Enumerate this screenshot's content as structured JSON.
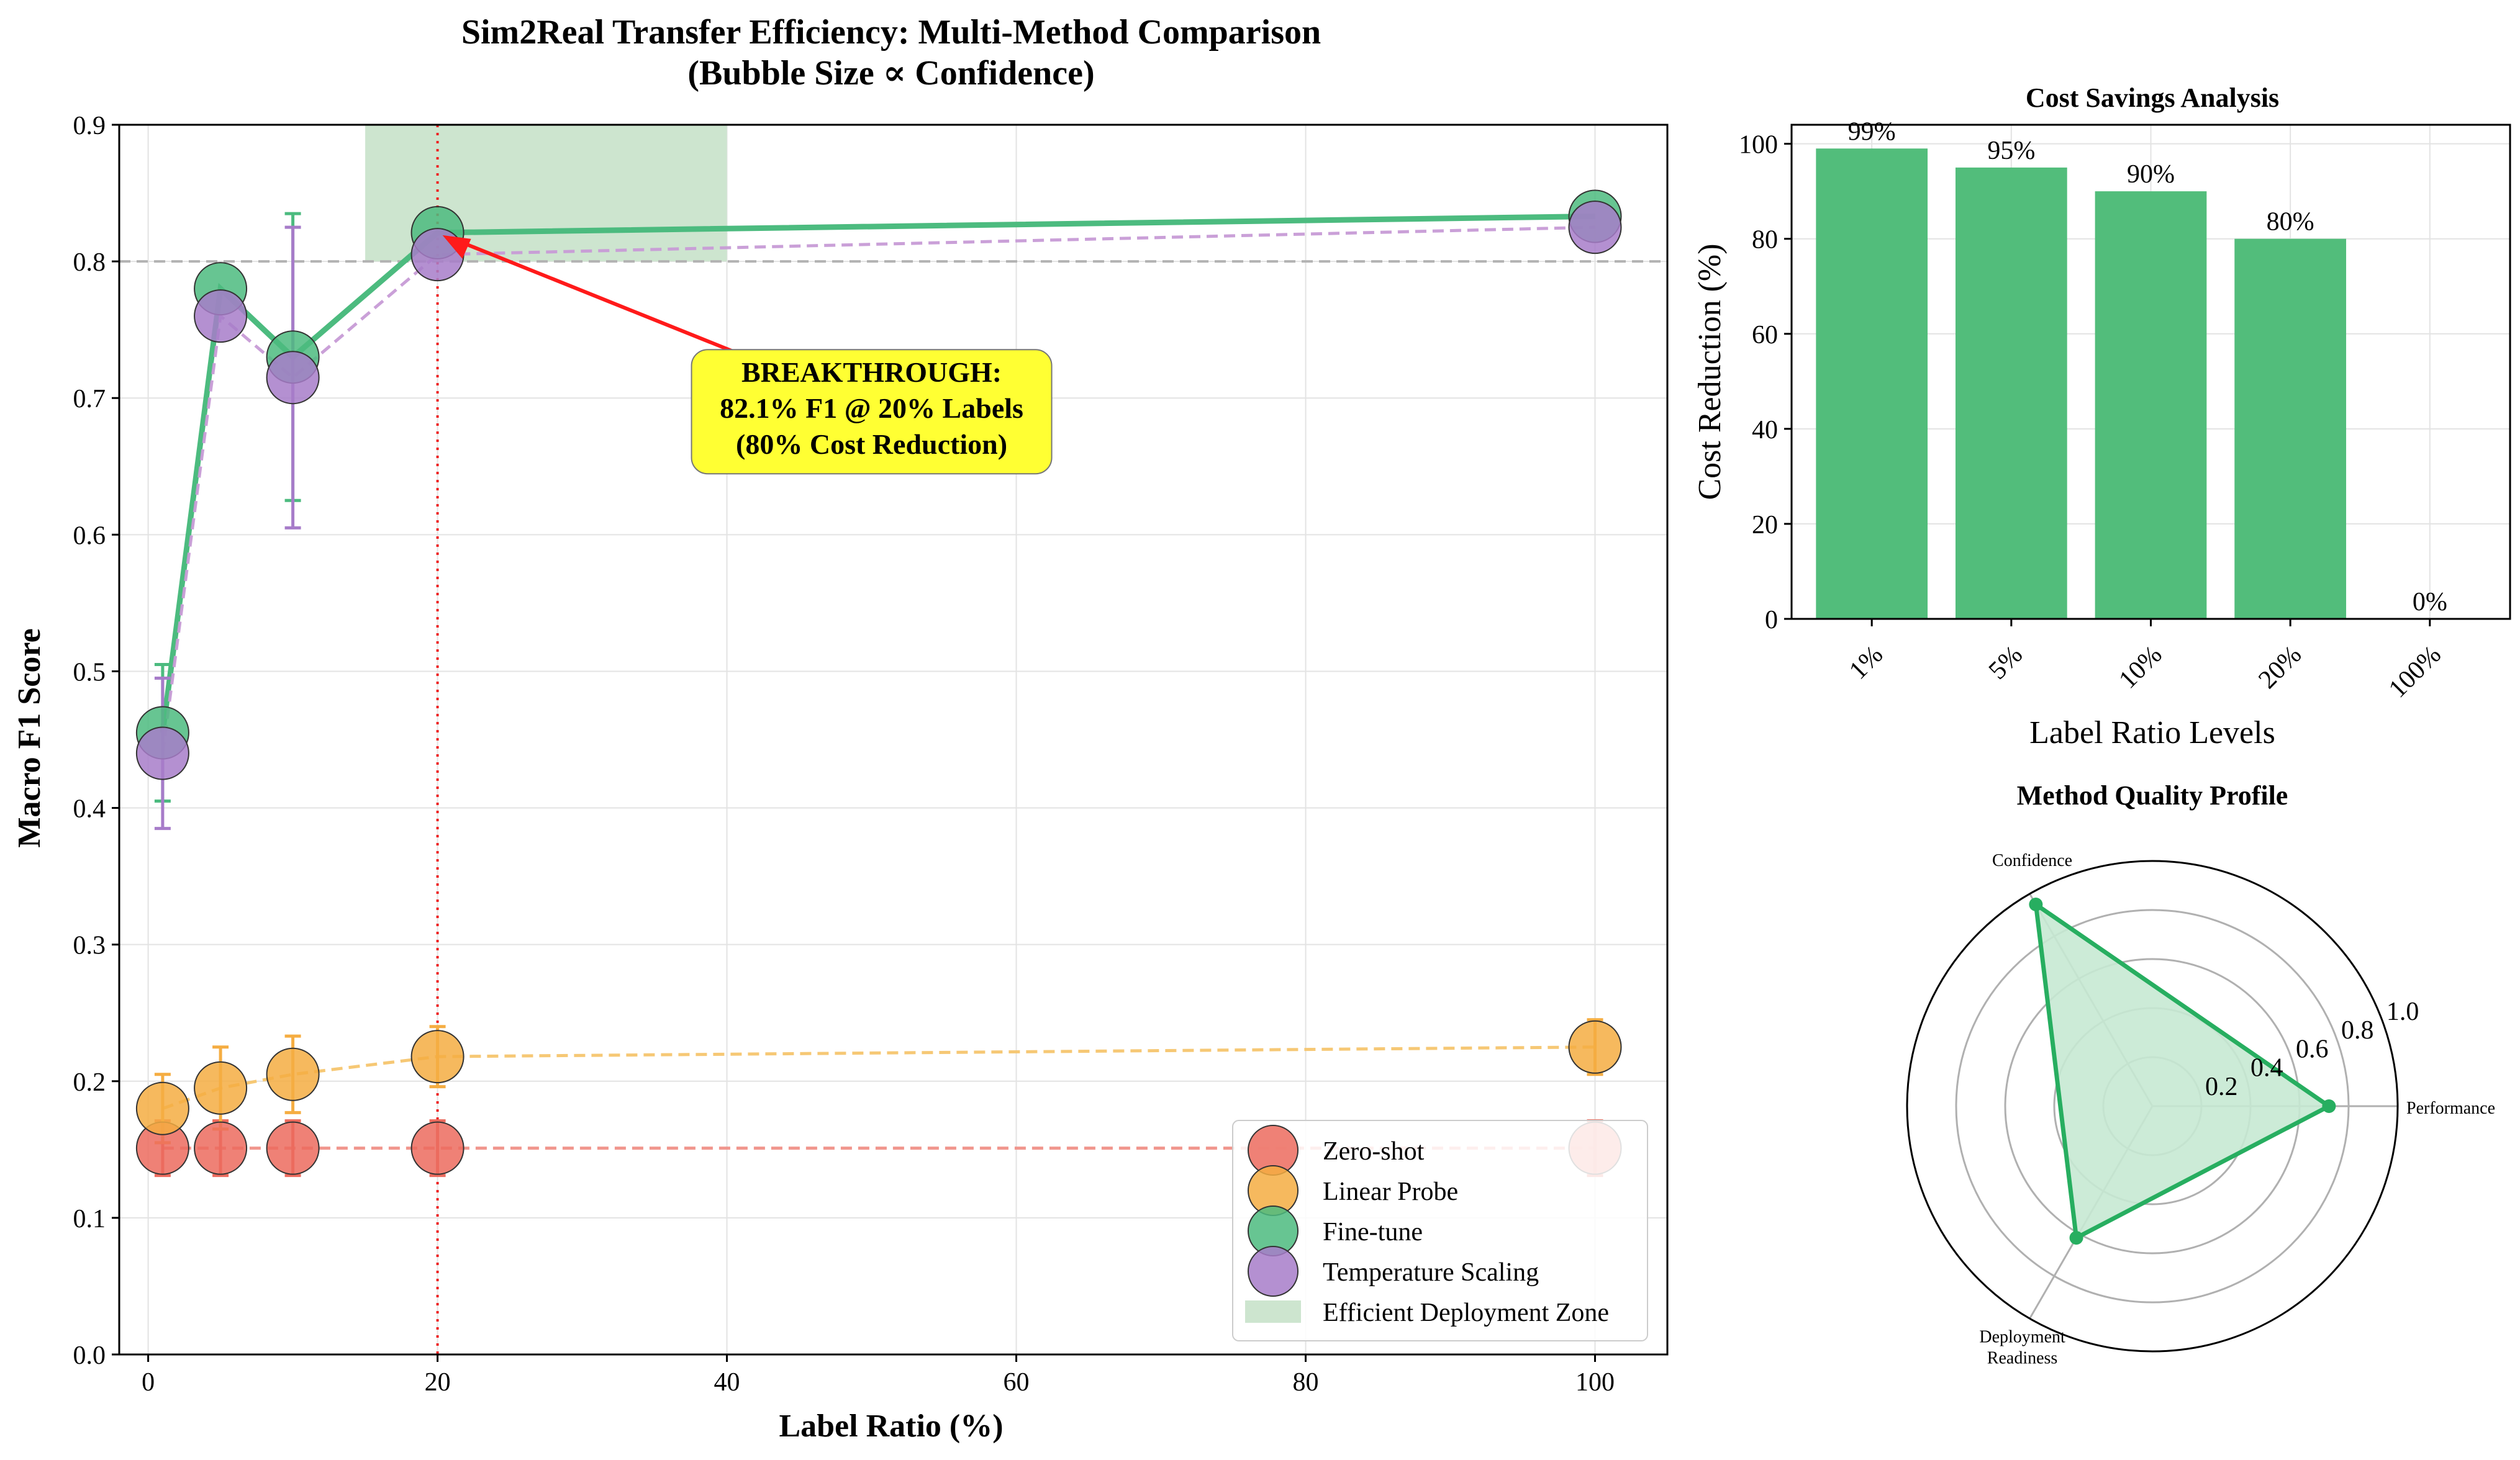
{
  "chart_data": [
    {
      "type": "scatter",
      "title_line1": "Sim2Real Transfer Efficiency: Multi-Method Comparison",
      "title_line2": "(Bubble Size ∝ Confidence)",
      "xlabel": "Label Ratio (%)",
      "ylabel": "Macro F1 Score",
      "xlim": [
        -2,
        105
      ],
      "ylim": [
        0,
        0.9
      ],
      "x_ticks": [
        0,
        20,
        40,
        60,
        80,
        100
      ],
      "y_ticks": [
        0.0,
        0.1,
        0.2,
        0.3,
        0.4,
        0.5,
        0.6,
        0.7,
        0.8,
        0.9
      ],
      "grid": true,
      "legend_position": "lower right",
      "reference_hline": 0.8,
      "reference_vline": 20,
      "shaded_zone": {
        "name": "Efficient Deployment Zone",
        "x": [
          15,
          40
        ],
        "y": [
          0.8,
          0.9
        ],
        "color": "#cde5cf"
      },
      "series": [
        {
          "name": "Zero-shot",
          "color": "#ec6b5e",
          "line_color": "#f09088",
          "line_style": "dashed",
          "x": [
            1,
            5,
            10,
            20,
            100
          ],
          "y": [
            0.151,
            0.151,
            0.151,
            0.151,
            0.151
          ],
          "err": [
            0.02,
            0.02,
            0.02,
            0.02,
            0.02
          ]
        },
        {
          "name": "Linear Probe",
          "color": "#f5ad42",
          "line_color": "#f5c56e",
          "line_style": "dashed",
          "x": [
            1,
            5,
            10,
            20,
            100
          ],
          "y": [
            0.18,
            0.195,
            0.205,
            0.218,
            0.225
          ],
          "err": [
            0.025,
            0.03,
            0.028,
            0.022,
            0.02
          ]
        },
        {
          "name": "Fine-tune",
          "color": "#4cbb7f",
          "line_color": "#4cbb7f",
          "line_style": "solid",
          "x": [
            1,
            5,
            10,
            20,
            100
          ],
          "y": [
            0.455,
            0.78,
            0.73,
            0.821,
            0.833
          ],
          "err": [
            0.05,
            0.0,
            0.105,
            0.0,
            0.0
          ]
        },
        {
          "name": "Temperature Scaling",
          "color": "#a77cc9",
          "line_color": "#c79bd6",
          "line_style": "dashed",
          "x": [
            1,
            5,
            10,
            20,
            100
          ],
          "y": [
            0.44,
            0.76,
            0.715,
            0.805,
            0.825
          ],
          "err": [
            0.055,
            0.0,
            0.11,
            0.0,
            0.0
          ]
        }
      ],
      "annotation": {
        "lines": [
          "BREAKTHROUGH:",
          "82.1% F1 @ 20% Labels",
          "(80% Cost Reduction)"
        ],
        "arrow_to": [
          20,
          0.821
        ],
        "box_center": [
          50,
          0.69
        ],
        "box_color": "#ffff33"
      }
    },
    {
      "type": "bar",
      "title": "Cost Savings Analysis",
      "xlabel": "Label Ratio Levels",
      "ylabel": "Cost Reduction (%)",
      "categories": [
        "1%",
        "5%",
        "10%",
        "20%",
        "100%"
      ],
      "values": [
        99,
        95,
        90,
        80,
        0
      ],
      "value_labels": [
        "99%",
        "95%",
        "90%",
        "80%",
        "0%"
      ],
      "ylim": [
        0,
        104
      ],
      "y_ticks": [
        0,
        20,
        40,
        60,
        80,
        100
      ],
      "color": "#52bd7b",
      "grid": true
    },
    {
      "type": "radar",
      "title": "Method Quality Profile",
      "axes": [
        "Performance",
        "Confidence",
        "Deployment\nReadiness"
      ],
      "axis_label_lines": [
        [
          "Performance"
        ],
        [
          "Confidence"
        ],
        [
          "Deployment",
          "Readiness"
        ]
      ],
      "values": [
        0.72,
        0.95,
        0.62
      ],
      "rlim": [
        0,
        1.0
      ],
      "r_ticks": [
        0.2,
        0.4,
        0.6,
        0.8,
        1.0
      ],
      "r_tick_labels": [
        "0.2",
        "0.4",
        "0.6",
        "0.8",
        "1.0"
      ],
      "color": "#27ae60",
      "fill_color": "#c7e9d3"
    }
  ]
}
